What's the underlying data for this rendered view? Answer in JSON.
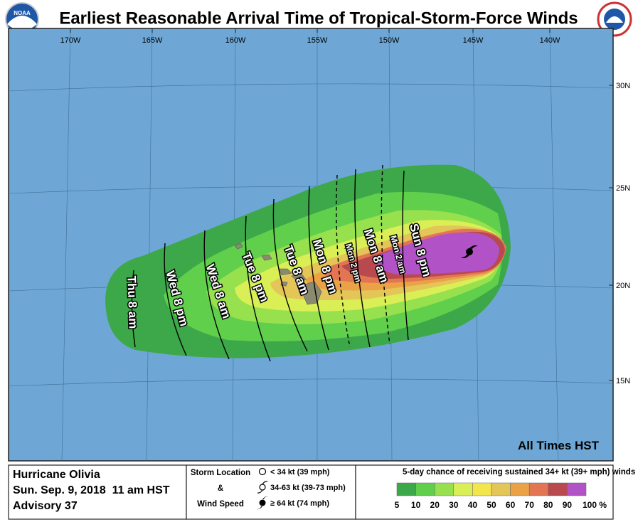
{
  "header": {
    "title": "Earliest Reasonable Arrival Time of Tropical-Storm-Force Winds",
    "logo_left": "NOAA"
  },
  "map": {
    "lon_labels": [
      "170W",
      "165W",
      "160W",
      "155W",
      "150W",
      "145W",
      "140W"
    ],
    "lat_labels": [
      "30N",
      "25N",
      "20N",
      "15N"
    ],
    "time_labels": [
      {
        "text": "Thu 8 am",
        "style": "solid"
      },
      {
        "text": "Wed 8 pm",
        "style": "solid"
      },
      {
        "text": "Wed 8 am",
        "style": "solid"
      },
      {
        "text": "Tue 8 pm",
        "style": "solid"
      },
      {
        "text": "Tue 8 am",
        "style": "solid"
      },
      {
        "text": "Mon 8 pm",
        "style": "solid"
      },
      {
        "text": "Mon 2 pm",
        "style": "dashed"
      },
      {
        "text": "Mon 8 am",
        "style": "solid"
      },
      {
        "text": "Mon 2 am",
        "style": "dashed"
      },
      {
        "text": "Sun 8 pm",
        "style": "solid"
      }
    ],
    "note": "All Times HST"
  },
  "legend": {
    "storm_name": "Hurricane Olivia",
    "date": "Sun. Sep. 9, 2018  11 am HST",
    "advisory": "Advisory 37",
    "location_title": [
      "Storm Location",
      "&",
      "Wind Speed"
    ],
    "location_items": [
      "< 34 kt (39 mph)",
      "34-63 kt (39-73 mph)",
      "≥ 64 kt (74 mph)"
    ],
    "scale_title": "5-day chance of receiving sustained 34+ kt (39+ mph) winds",
    "scale_labels": [
      "5",
      "10",
      "20",
      "30",
      "40",
      "50",
      "60",
      "70",
      "80",
      "90",
      "100 %"
    ],
    "scale_colors": [
      "#3da84a",
      "#5fcf4c",
      "#97e04e",
      "#d9ef55",
      "#f3e64d",
      "#e4c557",
      "#eba146",
      "#e27652",
      "#b8494f",
      "#b153c7"
    ]
  }
}
